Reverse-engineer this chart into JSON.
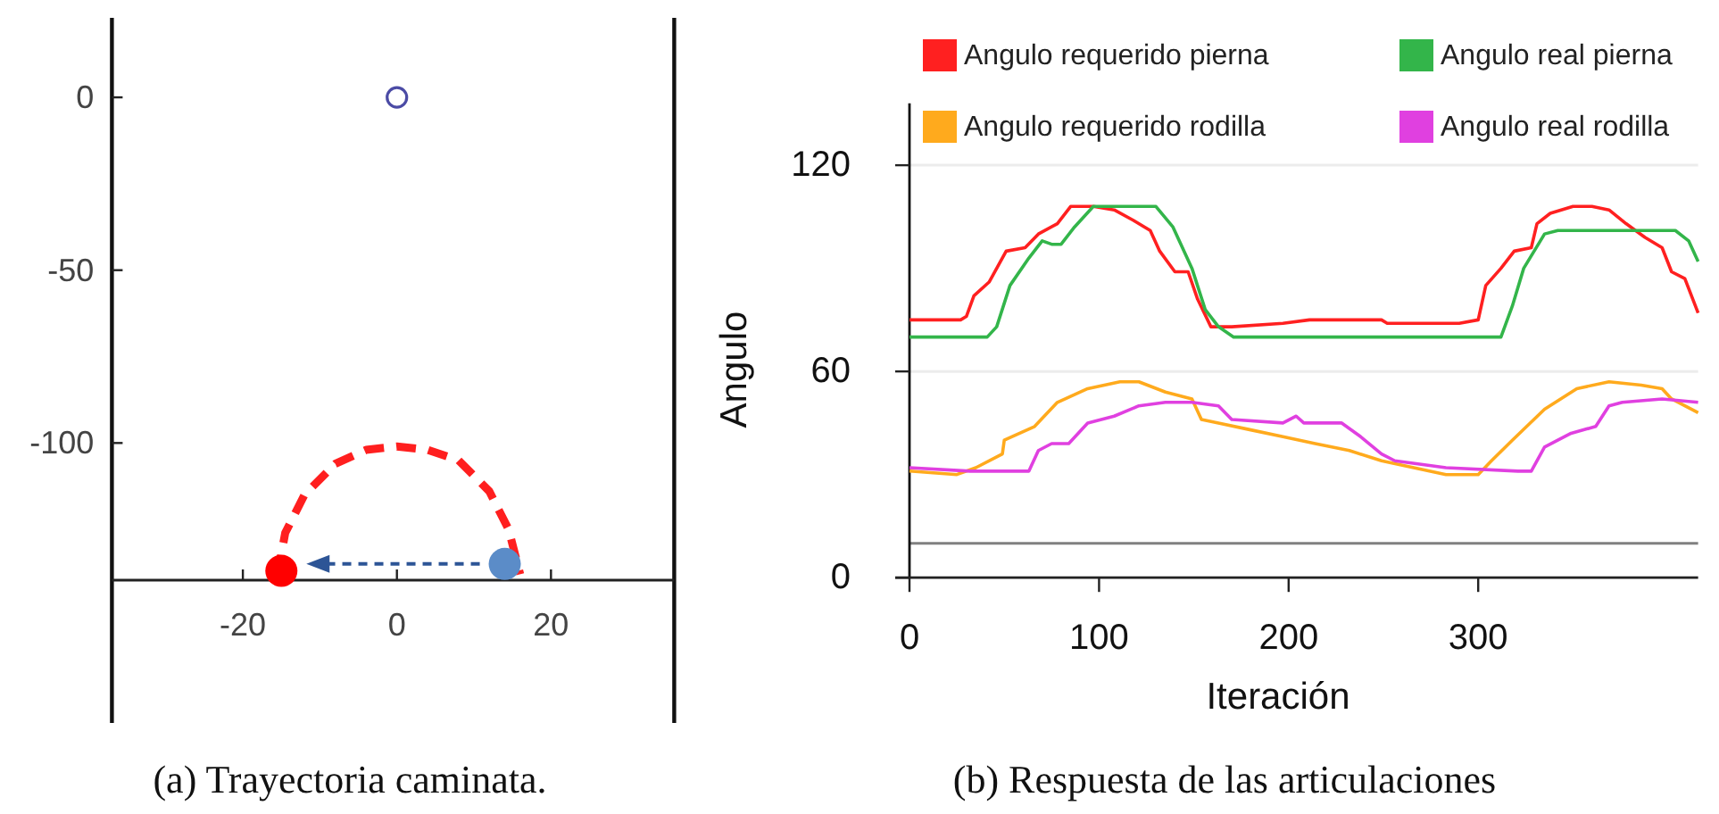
{
  "chart_data": [
    {
      "type": "scatter",
      "xlim": [
        -37,
        36
      ],
      "ylim": [
        -181,
        23
      ],
      "xticks": [
        -20,
        0,
        20
      ],
      "yticks": [
        -100,
        -50,
        0
      ],
      "annotations": [
        "(a) Trayectoria caminata."
      ],
      "series": [
        {
          "type": "line",
          "color": "#ff1f1f",
          "line_style": "dashed",
          "x": [
            -15.5,
            -14.5,
            -12,
            -8,
            -4,
            0,
            4,
            8,
            12,
            14.5,
            16
          ],
          "values": [
            -138,
            -126,
            -115,
            -106,
            -102,
            -101,
            -102,
            -105,
            -114,
            -125,
            -138
          ]
        },
        {
          "color": "#4b4ba5",
          "marker": "circle",
          "x": [
            0
          ],
          "values": [
            0
          ]
        },
        {
          "color": "#ff0000",
          "x": [
            -15
          ],
          "values": [
            -137
          ]
        },
        {
          "color": "#5b8cc8",
          "x": [
            14
          ],
          "values": [
            -135
          ]
        }
      ]
    },
    {
      "type": "line",
      "xlabel": "Iteración",
      "ylabel": "Angulo",
      "xlim": [
        0,
        416
      ],
      "ylim": [
        0,
        138
      ],
      "xticks": [
        0,
        100,
        200,
        300
      ],
      "yticks": [
        0,
        60,
        120
      ],
      "grid": "y",
      "legend": "top",
      "ref_lines": [
        {
          "axis": "y",
          "value": 10,
          "color": "#808080"
        }
      ],
      "annotations": [
        "(b) Respuesta de las articulaciones"
      ],
      "series": [
        {
          "name": "Angulo requerido pierna",
          "color": "#ff2020",
          "x": [
            0,
            27,
            30,
            34,
            42,
            51,
            61,
            68,
            78,
            85,
            97,
            108,
            118,
            127,
            132,
            140,
            147,
            152,
            159,
            170,
            197,
            211,
            249,
            252,
            290,
            300,
            304,
            312,
            319,
            328,
            331,
            338,
            350,
            360,
            369,
            378,
            388,
            397,
            402,
            409,
            416
          ],
          "values": [
            75,
            75,
            76,
            82,
            86,
            95,
            96,
            100,
            103,
            108,
            108,
            107,
            104,
            101,
            95,
            89,
            89,
            81,
            73,
            73,
            74,
            75,
            75,
            74,
            74,
            75,
            85,
            90,
            95,
            96,
            103,
            106,
            108,
            108,
            107,
            103,
            99,
            96,
            89,
            87,
            77
          ]
        },
        {
          "name": "Angulo real pierna",
          "color": "#33b54a",
          "x": [
            0,
            41,
            46,
            53,
            63,
            70,
            75,
            80,
            87,
            97,
            130,
            139,
            149,
            156,
            163,
            171,
            214,
            312,
            318,
            324,
            335,
            342,
            404,
            411,
            416
          ],
          "values": [
            70,
            70,
            73,
            85,
            93,
            98,
            97,
            97,
            102,
            108,
            108,
            102,
            90,
            78,
            73,
            70,
            70,
            70,
            79,
            90,
            100,
            101,
            101,
            98,
            92
          ]
        },
        {
          "name": "Angulo requerido rodilla",
          "color": "#ffaa1d",
          "x": [
            0,
            25,
            35,
            49,
            50,
            66,
            78,
            94,
            111,
            121,
            135,
            149,
            154,
            163,
            180,
            197,
            214,
            232,
            249,
            266,
            283,
            300,
            307,
            318,
            335,
            352,
            369,
            386,
            397,
            402,
            416
          ],
          "values": [
            31,
            30,
            32,
            36,
            40,
            44,
            51,
            55,
            57,
            57,
            54,
            52,
            46,
            45,
            43,
            41,
            39,
            37,
            34,
            32,
            30,
            30,
            34,
            40,
            49,
            55,
            57,
            56,
            55,
            52,
            48
          ]
        },
        {
          "name": "Angulo real rodilla",
          "color": "#e040e0",
          "x": [
            0,
            32,
            63,
            68,
            75,
            84,
            94,
            108,
            121,
            135,
            149,
            163,
            170,
            197,
            204,
            208,
            228,
            238,
            249,
            256,
            283,
            321,
            328,
            335,
            349,
            362,
            369,
            376,
            397,
            416
          ],
          "values": [
            32,
            31,
            31,
            37,
            39,
            39,
            45,
            47,
            50,
            51,
            51,
            50,
            46,
            45,
            47,
            45,
            45,
            41,
            36,
            34,
            32,
            31,
            31,
            38,
            42,
            44,
            50,
            51,
            52,
            51
          ]
        }
      ]
    }
  ]
}
